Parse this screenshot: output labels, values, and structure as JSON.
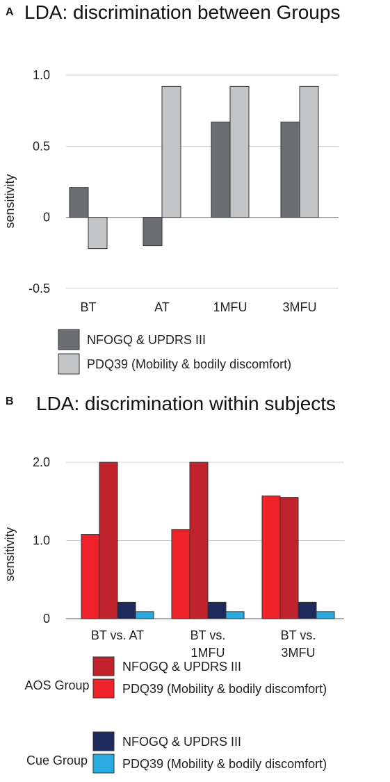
{
  "chart_data": [
    {
      "type": "bar",
      "panel_label": "A",
      "title": "LDA: discrimination between Groups",
      "ylabel": "sensitivity",
      "xlabel": "",
      "ylim": [
        -0.5,
        1.0
      ],
      "yticks": [
        1.0,
        0.5,
        0,
        -0.5
      ],
      "ytick_labels": [
        "1.0",
        "0.5",
        "0",
        "-0.5"
      ],
      "grid": true,
      "categories": [
        "BT",
        "AT",
        "1MFU",
        "3MFU"
      ],
      "series": [
        {
          "name": "NFOGQ & UPDRS III",
          "color": "#6b6e72",
          "values": [
            0.21,
            -0.2,
            0.67,
            0.67
          ]
        },
        {
          "name": "PDQ39 (Mobility & bodily discomfort)",
          "color": "#c2c4c6",
          "values": [
            -0.22,
            0.92,
            0.92,
            0.92
          ]
        }
      ],
      "legend_position": "bottom"
    },
    {
      "type": "bar",
      "panel_label": "B",
      "title": "LDA: discrimination within subjects",
      "ylabel": "sensitivity",
      "xlabel": "",
      "ylim": [
        0,
        2.0
      ],
      "yticks": [
        2.0,
        1.0,
        0
      ],
      "ytick_labels": [
        "2.0",
        "1.0",
        "0"
      ],
      "grid": true,
      "categories": [
        [
          "BT vs. AT"
        ],
        [
          "BT vs.",
          "1MFU"
        ],
        [
          "BT vs.",
          "3MFU"
        ]
      ],
      "series": [
        {
          "group": "AOS Group",
          "name": "PDQ39 (Mobility & bodily discomfort)",
          "color": "#ee2228",
          "values": [
            1.08,
            1.14,
            1.57
          ]
        },
        {
          "group": "AOS Group",
          "name": "NFOGQ & UPDRS III",
          "color": "#c0232b",
          "values": [
            2.0,
            2.0,
            1.55
          ]
        },
        {
          "group": "Cue Group",
          "name": "NFOGQ & UPDRS III",
          "color": "#1f2a5c",
          "values": [
            0.21,
            0.21,
            0.21
          ]
        },
        {
          "group": "Cue Group",
          "name": "PDQ39 (Mobility & bodily discomfort)",
          "color": "#29abe2",
          "values": [
            0.09,
            0.09,
            0.09
          ]
        }
      ],
      "legend": [
        {
          "group": "AOS Group",
          "items": [
            {
              "label": "NFOGQ & UPDRS III",
              "color": "#c0232b"
            },
            {
              "label": "PDQ39 (Mobility & bodily discomfort)",
              "color": "#ee2228"
            }
          ]
        },
        {
          "group": "Cue Group",
          "items": [
            {
              "label": "NFOGQ & UPDRS III",
              "color": "#1f2a5c"
            },
            {
              "label": "PDQ39 (Mobility & bodily discomfort)",
              "color": "#29abe2"
            }
          ]
        }
      ],
      "legend_position": "bottom"
    }
  ]
}
